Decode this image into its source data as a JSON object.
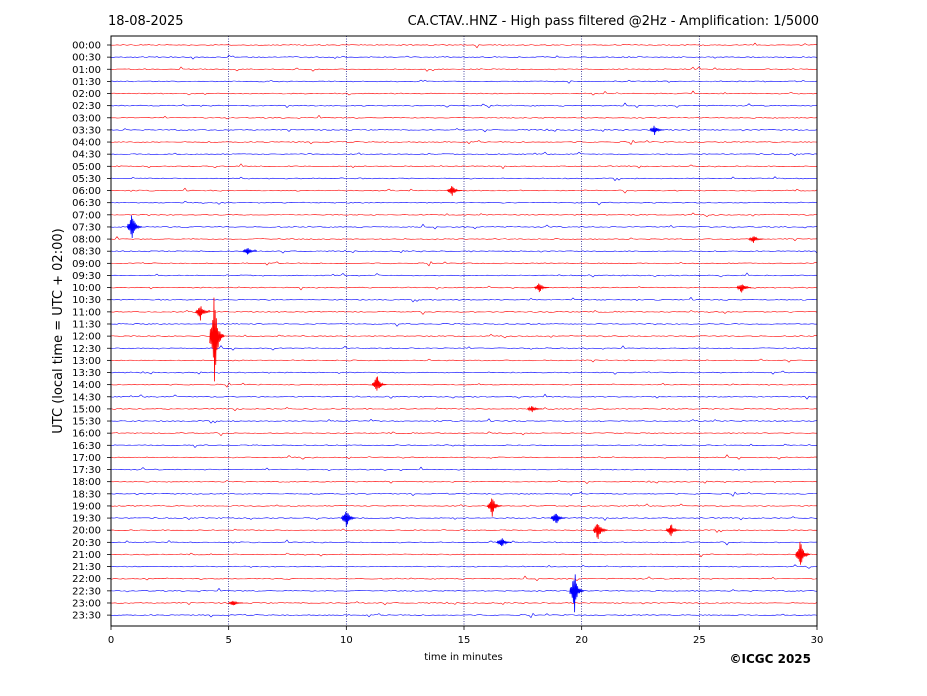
{
  "header": {
    "date": "18-08-2025",
    "title": "CA.CTAV..HNZ - High pass filtered @2Hz - Amplification: 1/5000"
  },
  "copyright": "©ICGC 2025",
  "chart_data": {
    "type": "line",
    "title": "CA.CTAV..HNZ - High pass filtered @2Hz - Amplification: 1/5000",
    "xlabel": "time in minutes",
    "ylabel": "UTC (local time = UTC + 02:00)",
    "xlim": [
      0,
      30
    ],
    "xticks": [
      0,
      5,
      10,
      15,
      20,
      25,
      30
    ],
    "grid": "vertical dotted lines at 5-minute intervals",
    "row_labels": [
      "00:00",
      "00:30",
      "01:00",
      "01:30",
      "02:00",
      "02:30",
      "03:00",
      "03:30",
      "04:00",
      "04:30",
      "05:00",
      "05:30",
      "06:00",
      "06:30",
      "07:00",
      "07:30",
      "08:00",
      "08:30",
      "09:00",
      "09:30",
      "10:00",
      "10:30",
      "11:00",
      "11:30",
      "12:00",
      "12:30",
      "13:00",
      "13:30",
      "14:00",
      "14:30",
      "15:00",
      "15:30",
      "16:00",
      "16:30",
      "17:00",
      "17:30",
      "18:00",
      "18:30",
      "19:00",
      "19:30",
      "20:00",
      "20:30",
      "21:00",
      "21:30",
      "22:00",
      "22:30",
      "23:00",
      "23:30"
    ],
    "trace_colors": [
      "#ff0000",
      "#0000ff"
    ],
    "events": [
      {
        "row": "03:30",
        "minute": 23.1,
        "amplitude": 0.5
      },
      {
        "row": "06:00",
        "minute": 14.5,
        "amplitude": 0.6
      },
      {
        "row": "07:30",
        "minute": 0.9,
        "amplitude": 1.6
      },
      {
        "row": "08:00",
        "minute": 27.3,
        "amplitude": 0.4
      },
      {
        "row": "08:30",
        "minute": 5.8,
        "amplitude": 0.4
      },
      {
        "row": "10:00",
        "minute": 18.2,
        "amplitude": 0.5
      },
      {
        "row": "10:00",
        "minute": 26.8,
        "amplitude": 0.6
      },
      {
        "row": "11:00",
        "minute": 3.8,
        "amplitude": 0.9
      },
      {
        "row": "12:00",
        "minute": 4.4,
        "amplitude": 5.0
      },
      {
        "row": "14:00",
        "minute": 11.3,
        "amplitude": 1.0
      },
      {
        "row": "15:00",
        "minute": 17.9,
        "amplitude": 0.4
      },
      {
        "row": "19:00",
        "minute": 16.2,
        "amplitude": 1.0
      },
      {
        "row": "19:30",
        "minute": 10.0,
        "amplitude": 1.0
      },
      {
        "row": "19:30",
        "minute": 18.9,
        "amplitude": 0.8
      },
      {
        "row": "20:00",
        "minute": 20.7,
        "amplitude": 1.2
      },
      {
        "row": "20:00",
        "minute": 23.8,
        "amplitude": 0.7
      },
      {
        "row": "20:30",
        "minute": 16.6,
        "amplitude": 0.5
      },
      {
        "row": "21:00",
        "minute": 29.3,
        "amplitude": 1.5
      },
      {
        "row": "22:30",
        "minute": 19.7,
        "amplitude": 2.0
      },
      {
        "row": "23:00",
        "minute": 5.2,
        "amplitude": 0.3
      }
    ]
  }
}
